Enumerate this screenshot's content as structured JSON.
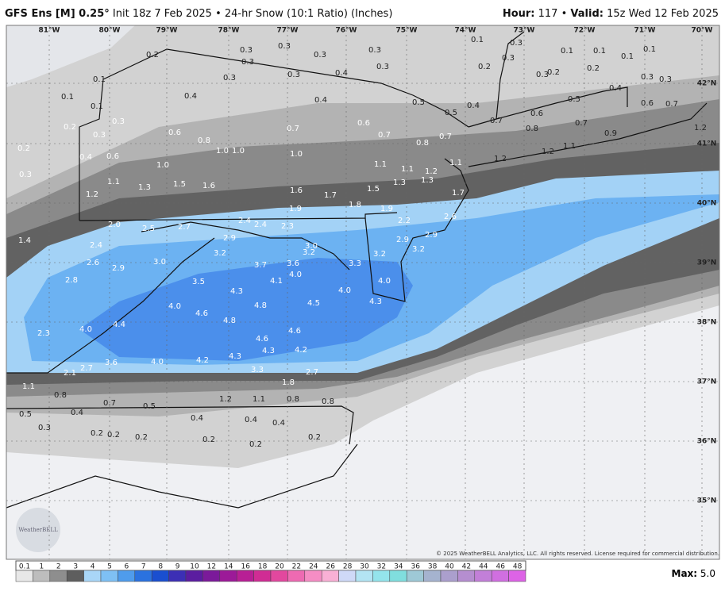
{
  "header": {
    "model": "GFS Ens [M] 0.25°",
    "init": "Init 18z 7 Feb 2025 • 24-hr Snow (10:1 Ratio) (Inches)",
    "hour_label": "Hour:",
    "hour": "117",
    "separator": "•",
    "valid_label": "Valid:",
    "valid": "15z Wed 12 Feb 2025"
  },
  "longitudes": [
    "81°W",
    "80°W",
    "79°W",
    "78°W",
    "77°W",
    "76°W",
    "75°W",
    "74°W",
    "73°W",
    "72°W",
    "71°W",
    "70°W"
  ],
  "latitudes": [
    "42°N",
    "41°N",
    "40°N",
    "39°N",
    "38°N",
    "37°N",
    "36°N",
    "35°N"
  ],
  "map_labels": [
    "0.2",
    "0.3",
    "0.3",
    "0.3",
    "0.3",
    "0.3",
    "0.3",
    "0.1",
    "0.3",
    "0.1",
    "0.1",
    "0.1",
    "0.1",
    "0.3",
    "0.2",
    "0.2",
    "0.3",
    "0.2",
    "0.3",
    "0.3",
    "0.1",
    "0.3",
    "0.3",
    "0.4",
    "0.4",
    "0.4",
    "0.5",
    "0.5",
    "0.4",
    "0.5",
    "0.4",
    "0.1",
    "0.1",
    "0.3",
    "0.2",
    "0.3",
    "0.6",
    "0.8",
    "0.7",
    "0.6",
    "0.7",
    "0.8",
    "0.7",
    "0.7",
    "0.6",
    "0.8",
    "0.7",
    "0.9",
    "0.6",
    "0.7",
    "1.2",
    "0.2",
    "0.4",
    "0.6",
    "1.0",
    "1.0",
    "1.0",
    "1.0",
    "1.1",
    "1.1",
    "1.2",
    "1.3",
    "1.1",
    "1.2",
    "1.2",
    "1.1",
    "0.3",
    "1.1",
    "1.3",
    "1.5",
    "1.6",
    "1.6",
    "1.7",
    "1.5",
    "1.3",
    "1.7",
    "1.2",
    "1.9",
    "1.8",
    "1.9",
    "2.2",
    "2.6",
    "2.0",
    "2.5",
    "2.7",
    "2.4",
    "2.4",
    "2.3",
    "2.9",
    "2.9",
    "2.9",
    "3.2",
    "3.2",
    "1.4",
    "2.4",
    "3.2",
    "3.0",
    "3.2",
    "2.6",
    "2.9",
    "3.0",
    "3.7",
    "3.6",
    "3.3",
    "4.0",
    "4.1",
    "2.8",
    "3.5",
    "4.0",
    "4.3",
    "4.0",
    "4.5",
    "4.3",
    "4.0",
    "4.8",
    "4.6",
    "4.8",
    "4.4",
    "4.0",
    "4.6",
    "2.3",
    "4.6",
    "4.3",
    "4.2",
    "4.0",
    "4.2",
    "4.3",
    "3.6",
    "2.7",
    "2.1",
    "3.3",
    "2.7",
    "1.8",
    "1.1",
    "0.8",
    "0.7",
    "0.5",
    "1.2",
    "1.1",
    "0.8",
    "0.8",
    "0.5",
    "0.4",
    "0.4",
    "0.4",
    "0.4",
    "0.3",
    "0.2",
    "0.2",
    "0.2",
    "0.2",
    "0.2",
    "0.2"
  ],
  "copyright": "© 2025 WeatherBELL Analytics, LLC. All rights reserved. License required for commercial distribution.",
  "logo": "WeatherBELL",
  "colorbar": [
    "0.1",
    "1",
    "2",
    "3",
    "4",
    "5",
    "6",
    "7",
    "8",
    "9",
    "10",
    "12",
    "14",
    "16",
    "18",
    "20",
    "22",
    "24",
    "26",
    "28",
    "30",
    "32",
    "34",
    "36",
    "38",
    "40",
    "42",
    "44",
    "46",
    "48"
  ],
  "max_label": "Max:",
  "max_value": "5.0"
}
